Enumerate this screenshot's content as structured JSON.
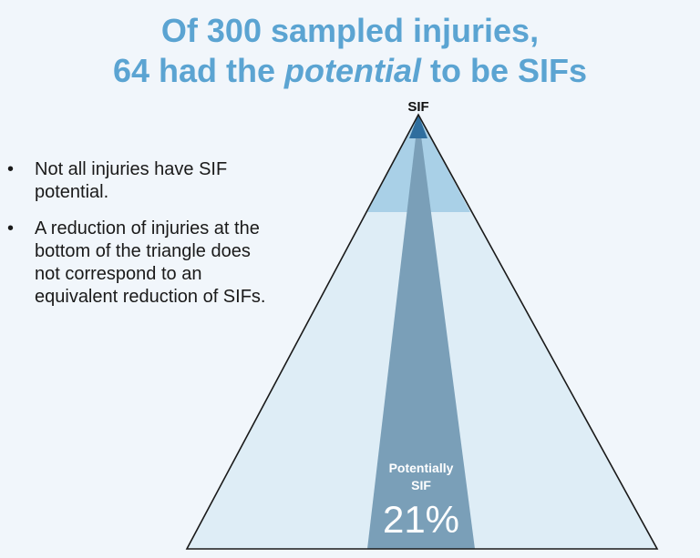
{
  "title": {
    "line1": "Of 300 sampled injuries,",
    "line2_pre": "64 had the ",
    "line2_em": "potential",
    "line2_post": " to be SIFs"
  },
  "bullets": [
    "Not all injuries have SIF potential.",
    "A reduction of injuries at the bottom of the triangle does not correspond to an equivalent reduction of SIFs."
  ],
  "bullet_glyph": "•",
  "pyramid": {
    "apex_label": "SIF",
    "wedge_label_line1": "Potentially",
    "wedge_label_line2": "SIF",
    "wedge_percent": "21%"
  },
  "colors": {
    "title": "#5ba4d2",
    "background": "#f1f6fb",
    "pyramid_base": "#deedf6",
    "pyramid_top_band": "#a9d0e7",
    "wedge": "#7a9fb8",
    "wedge_tip": "#2f6e9e",
    "outline": "#1a1a1a"
  }
}
